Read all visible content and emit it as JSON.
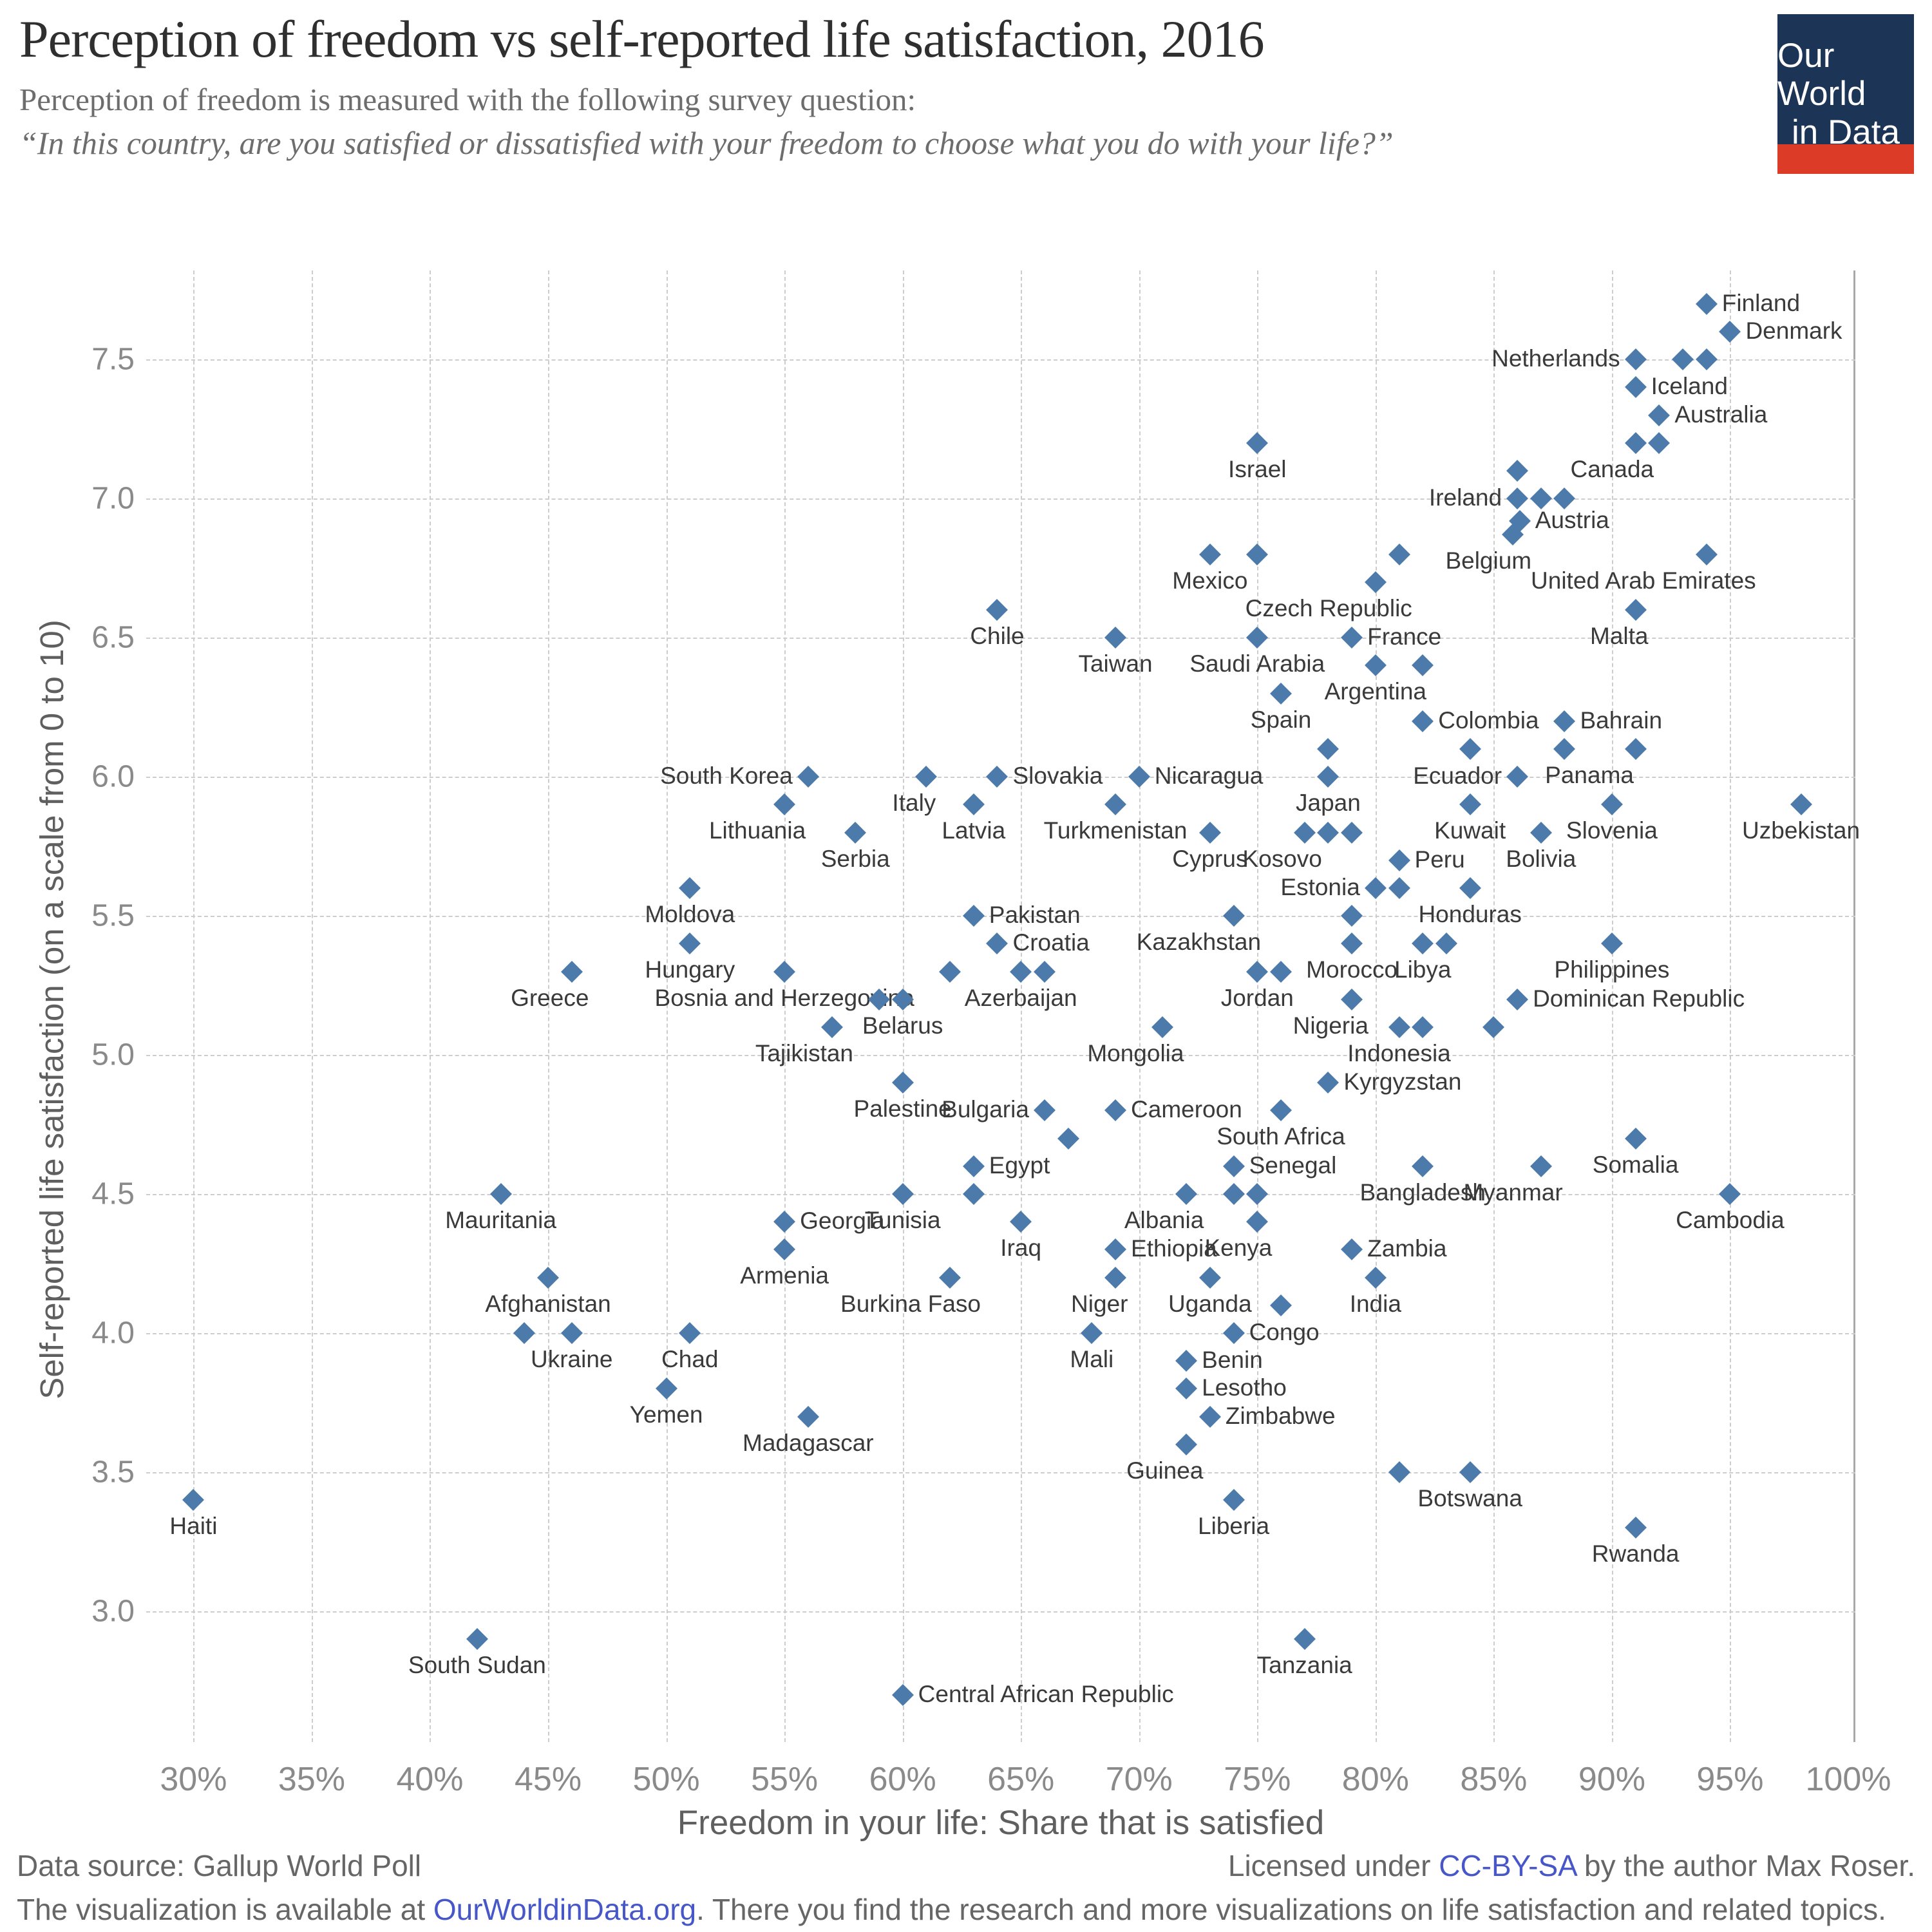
{
  "header": {
    "title": "Perception of freedom vs self-reported life satisfaction, 2016",
    "subtitle": "Perception of freedom is measured with the following survey question:",
    "quote": "“In this country, are you satisfied or dissatisfied with your freedom to choose what you do with your life?”",
    "logo": {
      "line1": "Our World",
      "line2": "in Data",
      "bg_color": "#1c3456",
      "bar_color": "#dc3c27"
    }
  },
  "chart_data": {
    "type": "scatter",
    "title": "Perception of freedom vs self-reported life satisfaction, 2016",
    "xlabel": "Freedom in your life: Share that is satisfied",
    "ylabel": "Self-reported life satisfaction (on a scale from 0 to 10)",
    "xlim": [
      28,
      100.3
    ],
    "ylim": [
      2.53,
      7.82
    ],
    "x_ticks": [
      30,
      35,
      40,
      45,
      50,
      55,
      60,
      65,
      70,
      75,
      80,
      85,
      90,
      95,
      100
    ],
    "x_tick_suffix": "%",
    "y_ticks": [
      3.0,
      3.5,
      4.0,
      4.5,
      5.0,
      5.5,
      6.0,
      6.5,
      7.0,
      7.5
    ],
    "grid": true,
    "legend": "none",
    "marker": {
      "shape": "diamond",
      "color": "#4c7aab"
    },
    "points": [
      {
        "label": "Finland",
        "x": 94,
        "y": 7.7,
        "anchor": "r"
      },
      {
        "label": "Denmark",
        "x": 95,
        "y": 7.6,
        "anchor": "r"
      },
      {
        "label": "Netherlands",
        "x": 91,
        "y": 7.5,
        "anchor": "l"
      },
      {
        "label": "",
        "x": 93,
        "y": 7.5
      },
      {
        "label": "",
        "x": 94,
        "y": 7.5
      },
      {
        "label": "Iceland",
        "x": 91,
        "y": 7.4,
        "anchor": "r"
      },
      {
        "label": "Australia",
        "x": 92,
        "y": 7.3,
        "anchor": "r"
      },
      {
        "label": "Canada",
        "x": 91,
        "y": 7.2,
        "anchor": "bl"
      },
      {
        "label": "",
        "x": 92,
        "y": 7.2
      },
      {
        "label": "Israel",
        "x": 75,
        "y": 7.2,
        "anchor": "b"
      },
      {
        "label": "",
        "x": 86,
        "y": 7.1
      },
      {
        "label": "Ireland",
        "x": 86,
        "y": 7.0,
        "anchor": "l"
      },
      {
        "label": "",
        "x": 87,
        "y": 7.0
      },
      {
        "label": "",
        "x": 88,
        "y": 7.0
      },
      {
        "label": "Austria",
        "x": 86.1,
        "y": 6.92,
        "anchor": "r"
      },
      {
        "label": "Belgium",
        "x": 85.8,
        "y": 6.87,
        "anchor": "bl"
      },
      {
        "label": "Mexico",
        "x": 73,
        "y": 6.8,
        "anchor": "b"
      },
      {
        "label": "",
        "x": 75,
        "y": 6.8
      },
      {
        "label": "United Arab Emirates",
        "x": 94,
        "y": 6.8,
        "anchor": "bl"
      },
      {
        "label": "",
        "x": 81,
        "y": 6.8
      },
      {
        "label": "Czech Republic",
        "x": 80,
        "y": 6.7,
        "anchor": "bl"
      },
      {
        "label": "Chile",
        "x": 64,
        "y": 6.6,
        "anchor": "b"
      },
      {
        "label": "Malta",
        "x": 91,
        "y": 6.6,
        "anchor": "bl"
      },
      {
        "label": "France",
        "x": 79,
        "y": 6.5,
        "anchor": "r"
      },
      {
        "label": "Taiwan",
        "x": 69,
        "y": 6.5,
        "anchor": "b"
      },
      {
        "label": "Saudi Arabia",
        "x": 75,
        "y": 6.5,
        "anchor": "b"
      },
      {
        "label": "Argentina",
        "x": 80,
        "y": 6.4,
        "anchor": "b"
      },
      {
        "label": "",
        "x": 82,
        "y": 6.4
      },
      {
        "label": "Spain",
        "x": 76,
        "y": 6.3,
        "anchor": "b"
      },
      {
        "label": "Colombia",
        "x": 82,
        "y": 6.2,
        "anchor": "r"
      },
      {
        "label": "Bahrain",
        "x": 88,
        "y": 6.2,
        "anchor": "r"
      },
      {
        "label": "",
        "x": 78,
        "y": 6.1
      },
      {
        "label": "",
        "x": 84,
        "y": 6.1
      },
      {
        "label": "Panama",
        "x": 88,
        "y": 6.1,
        "anchor": "br"
      },
      {
        "label": "",
        "x": 91,
        "y": 6.1
      },
      {
        "label": "South Korea",
        "x": 56,
        "y": 6.0,
        "anchor": "l"
      },
      {
        "label": "Italy",
        "x": 61,
        "y": 6.0,
        "anchor": "bl"
      },
      {
        "label": "Slovakia",
        "x": 64,
        "y": 6.0,
        "anchor": "r"
      },
      {
        "label": "Nicaragua",
        "x": 70,
        "y": 6.0,
        "anchor": "r"
      },
      {
        "label": "Japan",
        "x": 78,
        "y": 6.0,
        "anchor": "b"
      },
      {
        "label": "Ecuador",
        "x": 86,
        "y": 6.0,
        "anchor": "l"
      },
      {
        "label": "Lithuania",
        "x": 55,
        "y": 5.9,
        "anchor": "bl"
      },
      {
        "label": "Latvia",
        "x": 63,
        "y": 5.9,
        "anchor": "b"
      },
      {
        "label": "Turkmenistan",
        "x": 69,
        "y": 5.9,
        "anchor": "b"
      },
      {
        "label": "Kuwait",
        "x": 84,
        "y": 5.9,
        "anchor": "b"
      },
      {
        "label": "Slovenia",
        "x": 90,
        "y": 5.9,
        "anchor": "b"
      },
      {
        "label": "Uzbekistan",
        "x": 98,
        "y": 5.9,
        "anchor": "b"
      },
      {
        "label": "Serbia",
        "x": 58,
        "y": 5.8,
        "anchor": "b"
      },
      {
        "label": "Cyprus",
        "x": 73,
        "y": 5.8,
        "anchor": "b"
      },
      {
        "label": "Kosovo",
        "x": 77,
        "y": 5.8,
        "anchor": "bl"
      },
      {
        "label": "",
        "x": 78,
        "y": 5.8
      },
      {
        "label": "",
        "x": 79,
        "y": 5.8
      },
      {
        "label": "Bolivia",
        "x": 87,
        "y": 5.8,
        "anchor": "b"
      },
      {
        "label": "Peru",
        "x": 81,
        "y": 5.7,
        "anchor": "r"
      },
      {
        "label": "Moldova",
        "x": 51,
        "y": 5.6,
        "anchor": "b"
      },
      {
        "label": "Estonia",
        "x": 80,
        "y": 5.6,
        "anchor": "l"
      },
      {
        "label": "",
        "x": 81,
        "y": 5.6
      },
      {
        "label": "Honduras",
        "x": 84,
        "y": 5.6,
        "anchor": "b"
      },
      {
        "label": "Pakistan",
        "x": 63,
        "y": 5.5,
        "anchor": "r"
      },
      {
        "label": "Kazakhstan",
        "x": 74,
        "y": 5.5,
        "anchor": "bl"
      },
      {
        "label": "",
        "x": 79,
        "y": 5.5
      },
      {
        "label": "Hungary",
        "x": 51,
        "y": 5.4,
        "anchor": "b"
      },
      {
        "label": "Croatia",
        "x": 64,
        "y": 5.4,
        "anchor": "r"
      },
      {
        "label": "Morocco",
        "x": 79,
        "y": 5.4,
        "anchor": "b"
      },
      {
        "label": "Libya",
        "x": 82,
        "y": 5.4,
        "anchor": "b"
      },
      {
        "label": "",
        "x": 83,
        "y": 5.4
      },
      {
        "label": "Philippines",
        "x": 90,
        "y": 5.4,
        "anchor": "b"
      },
      {
        "label": "Greece",
        "x": 46,
        "y": 5.3,
        "anchor": "bl"
      },
      {
        "label": "Bosnia and Herzegovina",
        "x": 55,
        "y": 5.3,
        "anchor": "b"
      },
      {
        "label": "",
        "x": 62,
        "y": 5.3
      },
      {
        "label": "Azerbaijan",
        "x": 65,
        "y": 5.3,
        "anchor": "b"
      },
      {
        "label": "",
        "x": 66,
        "y": 5.3
      },
      {
        "label": "Jordan",
        "x": 75,
        "y": 5.3,
        "anchor": "b"
      },
      {
        "label": "",
        "x": 76,
        "y": 5.3
      },
      {
        "label": "",
        "x": 59,
        "y": 5.2
      },
      {
        "label": "Belarus",
        "x": 60,
        "y": 5.2,
        "anchor": "b"
      },
      {
        "label": "Nigeria",
        "x": 79,
        "y": 5.2,
        "anchor": "bl"
      },
      {
        "label": "Dominican Republic",
        "x": 86,
        "y": 5.2,
        "anchor": "r"
      },
      {
        "label": "Tajikistan",
        "x": 57,
        "y": 5.1,
        "anchor": "bl"
      },
      {
        "label": "Mongolia",
        "x": 71,
        "y": 5.1,
        "anchor": "bl"
      },
      {
        "label": "Indonesia",
        "x": 81,
        "y": 5.1,
        "anchor": "b"
      },
      {
        "label": "",
        "x": 82,
        "y": 5.1
      },
      {
        "label": "",
        "x": 85,
        "y": 5.1
      },
      {
        "label": "Palestine",
        "x": 60,
        "y": 4.9,
        "anchor": "b"
      },
      {
        "label": "Kyrgyzstan",
        "x": 78,
        "y": 4.9,
        "anchor": "r"
      },
      {
        "label": "Bulgaria",
        "x": 66,
        "y": 4.8,
        "anchor": "l"
      },
      {
        "label": "Cameroon",
        "x": 69,
        "y": 4.8,
        "anchor": "r"
      },
      {
        "label": "South Africa",
        "x": 76,
        "y": 4.8,
        "anchor": "b"
      },
      {
        "label": "",
        "x": 67,
        "y": 4.7
      },
      {
        "label": "Somalia",
        "x": 91,
        "y": 4.7,
        "anchor": "b"
      },
      {
        "label": "Egypt",
        "x": 63,
        "y": 4.6,
        "anchor": "r"
      },
      {
        "label": "Senegal",
        "x": 74,
        "y": 4.6,
        "anchor": "r"
      },
      {
        "label": "Bangladesh",
        "x": 82,
        "y": 4.6,
        "anchor": "b"
      },
      {
        "label": "Myanmar",
        "x": 87,
        "y": 4.6,
        "anchor": "bl"
      },
      {
        "label": "Mauritania",
        "x": 43,
        "y": 4.5,
        "anchor": "b"
      },
      {
        "label": "Tunisia",
        "x": 60,
        "y": 4.5,
        "anchor": "b"
      },
      {
        "label": "",
        "x": 63,
        "y": 4.5
      },
      {
        "label": "Albania",
        "x": 72,
        "y": 4.5,
        "anchor": "bl"
      },
      {
        "label": "",
        "x": 74,
        "y": 4.5
      },
      {
        "label": "",
        "x": 75,
        "y": 4.5
      },
      {
        "label": "Cambodia",
        "x": 95,
        "y": 4.5,
        "anchor": "b"
      },
      {
        "label": "Georgia",
        "x": 55,
        "y": 4.4,
        "anchor": "r"
      },
      {
        "label": "Iraq",
        "x": 65,
        "y": 4.4,
        "anchor": "b"
      },
      {
        "label": "Kenya",
        "x": 75,
        "y": 4.4,
        "anchor": "bl"
      },
      {
        "label": "Armenia",
        "x": 55,
        "y": 4.3,
        "anchor": "b"
      },
      {
        "label": "Ethiopia",
        "x": 69,
        "y": 4.3,
        "anchor": "r"
      },
      {
        "label": "Zambia",
        "x": 79,
        "y": 4.3,
        "anchor": "r"
      },
      {
        "label": "Afghanistan",
        "x": 45,
        "y": 4.2,
        "anchor": "b"
      },
      {
        "label": "Burkina Faso",
        "x": 62,
        "y": 4.2,
        "anchor": "bl"
      },
      {
        "label": "Niger",
        "x": 69,
        "y": 4.2,
        "anchor": "bl"
      },
      {
        "label": "Uganda",
        "x": 73,
        "y": 4.2,
        "anchor": "b"
      },
      {
        "label": "India",
        "x": 80,
        "y": 4.2,
        "anchor": "b"
      },
      {
        "label": "",
        "x": 76,
        "y": 4.1
      },
      {
        "label": "",
        "x": 44,
        "y": 4.0
      },
      {
        "label": "Ukraine",
        "x": 46,
        "y": 4.0,
        "anchor": "b"
      },
      {
        "label": "Chad",
        "x": 51,
        "y": 4.0,
        "anchor": "b"
      },
      {
        "label": "Mali",
        "x": 68,
        "y": 4.0,
        "anchor": "b"
      },
      {
        "label": "Congo",
        "x": 74,
        "y": 4.0,
        "anchor": "r"
      },
      {
        "label": "Benin",
        "x": 72,
        "y": 3.9,
        "anchor": "r"
      },
      {
        "label": "Yemen",
        "x": 50,
        "y": 3.8,
        "anchor": "b"
      },
      {
        "label": "Lesotho",
        "x": 72,
        "y": 3.8,
        "anchor": "r"
      },
      {
        "label": "Zimbabwe",
        "x": 73,
        "y": 3.7,
        "anchor": "r"
      },
      {
        "label": "Madagascar",
        "x": 56,
        "y": 3.7,
        "anchor": "b"
      },
      {
        "label": "Guinea",
        "x": 72,
        "y": 3.6,
        "anchor": "bl"
      },
      {
        "label": "",
        "x": 81,
        "y": 3.5
      },
      {
        "label": "Botswana",
        "x": 84,
        "y": 3.5,
        "anchor": "b"
      },
      {
        "label": "Haiti",
        "x": 30,
        "y": 3.4,
        "anchor": "b"
      },
      {
        "label": "Liberia",
        "x": 74,
        "y": 3.4,
        "anchor": "b"
      },
      {
        "label": "Rwanda",
        "x": 91,
        "y": 3.3,
        "anchor": "b"
      },
      {
        "label": "South Sudan",
        "x": 42,
        "y": 2.9,
        "anchor": "b"
      },
      {
        "label": "Tanzania",
        "x": 77,
        "y": 2.9,
        "anchor": "b"
      },
      {
        "label": "Central African Republic",
        "x": 60,
        "y": 2.7,
        "anchor": "r"
      }
    ]
  },
  "footer": {
    "datasource": "Data source: Gallup World Poll",
    "license_pre": "Licensed under ",
    "license_link": "CC-BY-SA",
    "license_post": " by the author Max Roser.",
    "line2_pre": "The visualization is available at ",
    "line2_link": "OurWorldinData.org",
    "line2_post": ". There you find the research and more visualizations on life satisfaction and related topics."
  }
}
